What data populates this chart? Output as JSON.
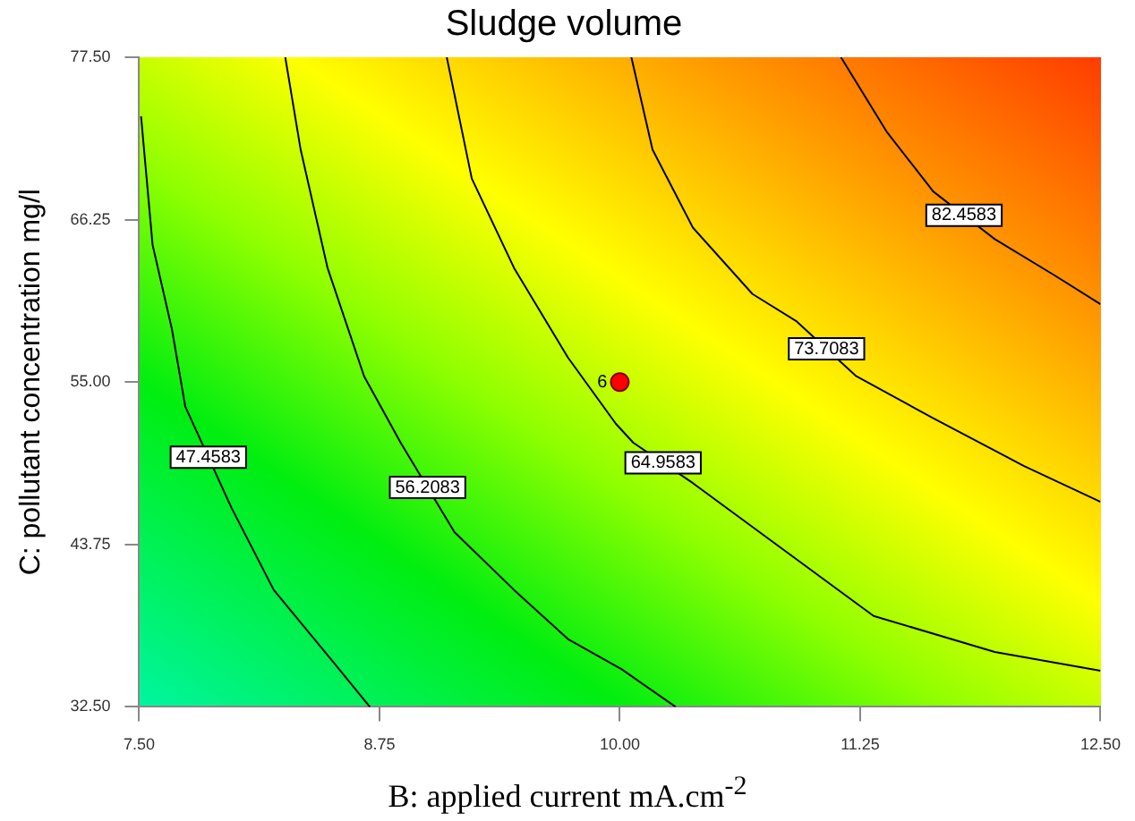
{
  "chart_data": {
    "type": "line",
    "title": "Sludge volume",
    "xlabel": "B: applied current mA.cm$^{-2}$",
    "ylabel": "C: pollutant concentration mg/l",
    "xlim": [
      7.5,
      12.5
    ],
    "ylim": [
      32.5,
      77.5
    ],
    "xticks": [
      {
        "value": 7.5,
        "label": "7.50"
      },
      {
        "value": 8.75,
        "label": "8.75"
      },
      {
        "value": 10,
        "label": "10.00"
      },
      {
        "value": 11.25,
        "label": "11.25"
      },
      {
        "value": 12.5,
        "label": "12.50"
      }
    ],
    "yticks": [
      {
        "value": 32.5,
        "label": "32.50"
      },
      {
        "value": 43.75,
        "label": "43.75"
      },
      {
        "value": 55,
        "label": "55.00"
      },
      {
        "value": 66.25,
        "label": "66.25"
      },
      {
        "value": 77.5,
        "label": "77.50"
      }
    ],
    "grid": false,
    "legend": false,
    "marker": "none",
    "series": [
      {
        "name": "47.4583",
        "color": "#000000",
        "x": [
          7.51,
          7.57,
          7.67,
          7.74,
          7.98,
          8.2,
          8.51,
          8.7
        ],
        "values": [
          73.4,
          64.5,
          58.7,
          53.3,
          46.3,
          40.6,
          35.6,
          32.5
        ]
      },
      {
        "name": "56.2083",
        "color": "#000000",
        "x": [
          8.26,
          8.34,
          8.48,
          8.67,
          8.86,
          9.14,
          9.45,
          9.73,
          10.01,
          10.29
        ],
        "values": [
          77.5,
          71.1,
          62.9,
          55.4,
          50.8,
          44.6,
          40.6,
          37.2,
          35.1,
          32.5
        ]
      },
      {
        "name": "64.9583",
        "color": "#000000",
        "x": [
          9.1,
          9.23,
          9.45,
          9.73,
          9.98,
          10.07,
          10.38,
          10.85,
          11.32,
          11.95,
          12.5
        ],
        "values": [
          77.5,
          69.1,
          62.9,
          56.7,
          52.1,
          50.8,
          48.0,
          43.4,
          38.8,
          36.3,
          35.0
        ]
      },
      {
        "name": "73.7083",
        "color": "#000000",
        "x": [
          10.06,
          10.17,
          10.38,
          10.69,
          10.92,
          11.23,
          11.63,
          12.1,
          12.5
        ],
        "values": [
          77.5,
          71.1,
          65.7,
          61.1,
          59.2,
          55.4,
          52.5,
          49.2,
          46.7
        ]
      },
      {
        "name": "82.4583",
        "color": "#000000",
        "x": [
          11.15,
          11.39,
          11.63,
          11.95,
          12.26,
          12.5
        ],
        "values": [
          77.5,
          72.3,
          68.2,
          64.9,
          62.4,
          60.4
        ]
      },
      {
        "type": "scatter",
        "marker": "circle",
        "color": "#ff0000",
        "x": [
          10
        ],
        "values": [
          55
        ]
      }
    ],
    "annotations": [
      {
        "text": "6",
        "x": 10,
        "y": 55
      }
    ]
  }
}
